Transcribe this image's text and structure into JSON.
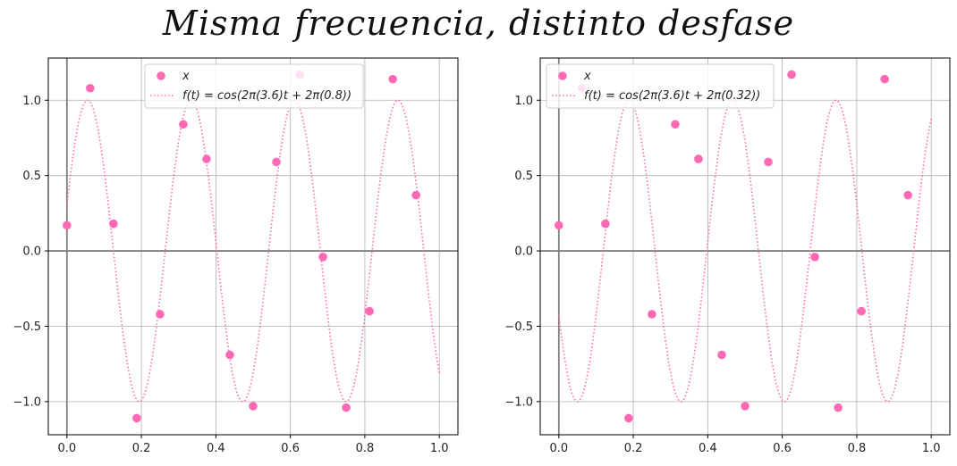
{
  "title": "Misma frecuencia, distinto desfase",
  "colors": {
    "series": "#ff69b4",
    "axis_zero": "#808080",
    "grid": "#b0b0b0"
  },
  "chart_data": [
    {
      "type": "scatter",
      "xlim": [
        -0.05,
        1.05
      ],
      "ylim": [
        -1.22,
        1.28
      ],
      "xticks": [
        0.0,
        0.2,
        0.4,
        0.6,
        0.8,
        1.0
      ],
      "xtick_labels": [
        "0.0",
        "0.2",
        "0.4",
        "0.6",
        "0.8",
        "1.0"
      ],
      "yticks": [
        -1.0,
        -0.5,
        0.0,
        0.5,
        1.0
      ],
      "ytick_labels": [
        "−1.0",
        "−0.5",
        "0.0",
        "0.5",
        "1.0"
      ],
      "grid": true,
      "legend_position": "top-center",
      "legend": [
        "x",
        "f(t) = cos(2π(3.6)t + 2π(0.8))"
      ],
      "points": {
        "x": [
          0.0,
          0.0625,
          0.125,
          0.1875,
          0.25,
          0.3125,
          0.375,
          0.4375,
          0.5,
          0.5625,
          0.625,
          0.6875,
          0.75,
          0.8125,
          0.875,
          0.9375
        ],
        "y": [
          0.17,
          1.08,
          0.18,
          -1.11,
          -0.42,
          0.84,
          0.61,
          -0.69,
          -1.03,
          0.59,
          1.17,
          -0.04,
          -1.04,
          -0.4,
          1.14,
          0.37
        ]
      },
      "curve": {
        "frequency": 3.6,
        "phase": 0.8,
        "style": "dotted"
      }
    },
    {
      "type": "scatter",
      "xlim": [
        -0.05,
        1.05
      ],
      "ylim": [
        -1.22,
        1.28
      ],
      "xticks": [
        0.0,
        0.2,
        0.4,
        0.6,
        0.8,
        1.0
      ],
      "xtick_labels": [
        "0.0",
        "0.2",
        "0.4",
        "0.6",
        "0.8",
        "1.0"
      ],
      "yticks": [
        -1.0,
        -0.5,
        0.0,
        0.5,
        1.0
      ],
      "ytick_labels": [
        "−1.0",
        "−0.5",
        "0.0",
        "0.5",
        "1.0"
      ],
      "grid": true,
      "legend_position": "top-left",
      "legend": [
        "x",
        "f(t) = cos(2π(3.6)t + 2π(0.32))"
      ],
      "points": {
        "x": [
          0.0,
          0.0625,
          0.125,
          0.1875,
          0.25,
          0.3125,
          0.375,
          0.4375,
          0.5,
          0.5625,
          0.625,
          0.6875,
          0.75,
          0.8125,
          0.875,
          0.9375
        ],
        "y": [
          0.17,
          1.08,
          0.18,
          -1.11,
          -0.42,
          0.84,
          0.61,
          -0.69,
          -1.03,
          0.59,
          1.17,
          -0.04,
          -1.04,
          -0.4,
          1.14,
          0.37
        ]
      },
      "curve": {
        "frequency": 3.6,
        "phase": 0.32,
        "style": "dotted"
      }
    }
  ]
}
